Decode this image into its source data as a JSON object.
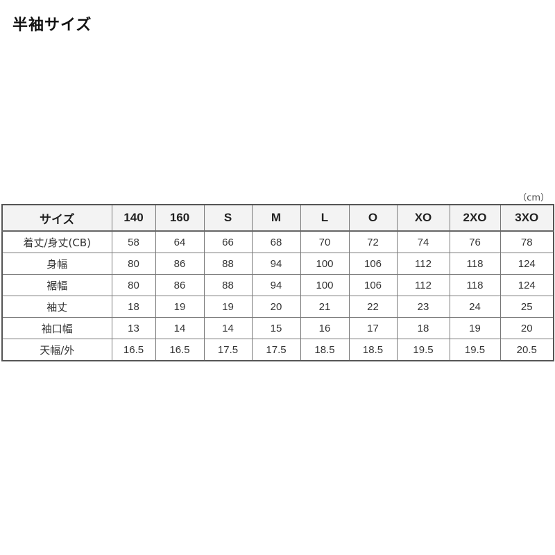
{
  "title": "半袖サイズ",
  "unit": "（cm）",
  "table": {
    "headers": [
      "サイズ",
      "140",
      "160",
      "S",
      "M",
      "L",
      "O",
      "XO",
      "2XO",
      "3XO"
    ],
    "rows": [
      {
        "label": "着丈/身丈(CB)",
        "values": [
          "58",
          "64",
          "66",
          "68",
          "70",
          "72",
          "74",
          "76",
          "78"
        ]
      },
      {
        "label": "身幅",
        "values": [
          "80",
          "86",
          "88",
          "94",
          "100",
          "106",
          "112",
          "118",
          "124"
        ]
      },
      {
        "label": "裾幅",
        "values": [
          "80",
          "86",
          "88",
          "94",
          "100",
          "106",
          "112",
          "118",
          "124"
        ]
      },
      {
        "label": "袖丈",
        "values": [
          "18",
          "19",
          "19",
          "20",
          "21",
          "22",
          "23",
          "24",
          "25"
        ]
      },
      {
        "label": "袖口幅",
        "values": [
          "13",
          "14",
          "14",
          "15",
          "16",
          "17",
          "18",
          "19",
          "20"
        ]
      },
      {
        "label": "天幅/外",
        "values": [
          "16.5",
          "16.5",
          "17.5",
          "17.5",
          "18.5",
          "18.5",
          "19.5",
          "19.5",
          "20.5"
        ]
      }
    ]
  }
}
